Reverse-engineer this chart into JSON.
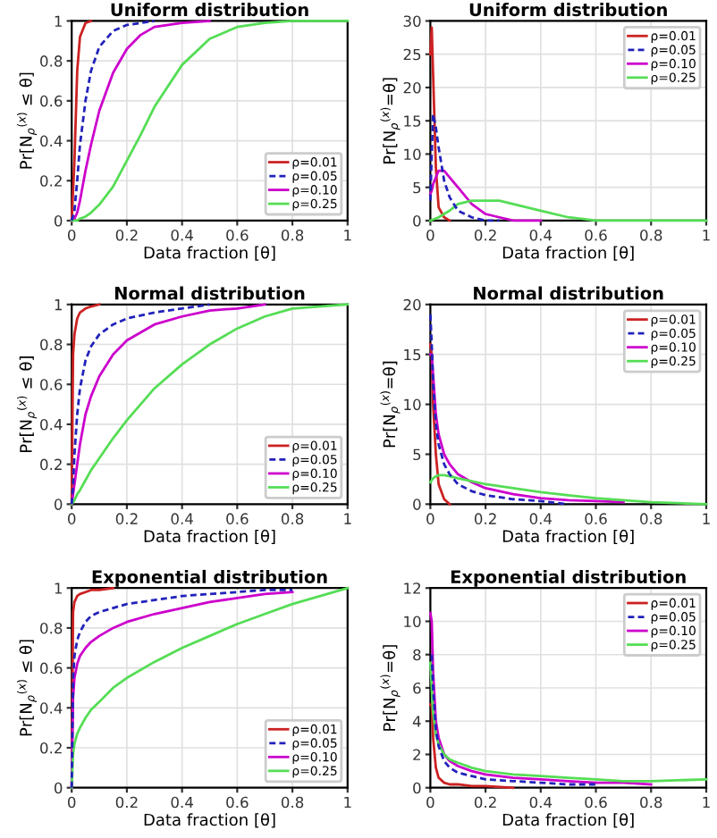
{
  "chart_data": [
    {
      "type": "line",
      "title": "Uniform distribution",
      "xlabel": "Data fraction [θ]",
      "ylabel": "Pr[N$_{ρ}$$^{(x)}$ ≤ θ]",
      "xlim": [
        0,
        1
      ],
      "ylim": [
        0,
        1
      ],
      "xticks": [
        0,
        0.2,
        0.4,
        0.6,
        0.8,
        1
      ],
      "yticks": [
        0,
        0.2,
        0.4,
        0.6,
        0.8,
        1
      ],
      "grid": true,
      "legend": "bottom right",
      "series": [
        {
          "name": "ρ=0.01",
          "color": "#cc2222",
          "line_style": "solid",
          "x": [
            0,
            0.01,
            0.02,
            0.03,
            0.05,
            0.07
          ],
          "values": [
            0,
            0.3,
            0.75,
            0.92,
            0.99,
            1
          ]
        },
        {
          "name": "ρ=0.05",
          "color": "#2222bb",
          "line_style": "dashed",
          "x": [
            0,
            0.01,
            0.02,
            0.03,
            0.05,
            0.07,
            0.1,
            0.15,
            0.2,
            0.25,
            0.3
          ],
          "values": [
            0,
            0.05,
            0.2,
            0.38,
            0.6,
            0.75,
            0.87,
            0.95,
            0.98,
            0.99,
            1
          ]
        },
        {
          "name": "ρ=0.10",
          "color": "#cc00cc",
          "line_style": "solid",
          "x": [
            0,
            0.01,
            0.02,
            0.03,
            0.05,
            0.07,
            0.1,
            0.15,
            0.2,
            0.25,
            0.3,
            0.4,
            0.5
          ],
          "values": [
            0,
            0.01,
            0.04,
            0.1,
            0.25,
            0.38,
            0.55,
            0.74,
            0.86,
            0.93,
            0.97,
            0.99,
            1
          ]
        },
        {
          "name": "ρ=0.25",
          "color": "#55dd55",
          "line_style": "solid",
          "x": [
            0,
            0.01,
            0.02,
            0.03,
            0.05,
            0.07,
            0.1,
            0.15,
            0.2,
            0.25,
            0.3,
            0.4,
            0.5,
            0.6,
            0.7,
            0.8,
            1
          ],
          "values": [
            0,
            0,
            0,
            0.01,
            0.02,
            0.04,
            0.08,
            0.17,
            0.3,
            0.43,
            0.57,
            0.78,
            0.91,
            0.97,
            0.99,
            1,
            1
          ]
        }
      ]
    },
    {
      "type": "line",
      "title": "Uniform distribution",
      "xlabel": "Data fraction [θ]",
      "ylabel": "Pr[N$_{ρ}$$^{(x)}$=θ]",
      "xlim": [
        0,
        1
      ],
      "ylim": [
        0,
        30
      ],
      "xticks": [
        0,
        0.2,
        0.4,
        0.6,
        0.8,
        1
      ],
      "yticks": [
        0,
        5,
        10,
        15,
        20,
        25,
        30
      ],
      "grid": true,
      "legend": "top right",
      "series": [
        {
          "name": "ρ=0.01",
          "color": "#cc2222",
          "line_style": "solid",
          "x": [
            0,
            0.005,
            0.01,
            0.02,
            0.03,
            0.05,
            0.07
          ],
          "values": [
            25,
            29,
            22,
            8,
            2,
            0.5,
            0
          ]
        },
        {
          "name": "ρ=0.05",
          "color": "#2222bb",
          "line_style": "dashed",
          "x": [
            0,
            0.005,
            0.01,
            0.02,
            0.03,
            0.05,
            0.07,
            0.1,
            0.15,
            0.2,
            0.25
          ],
          "values": [
            3,
            10,
            16,
            14,
            11,
            6,
            3.5,
            1.5,
            0.5,
            0,
            0
          ]
        },
        {
          "name": "ρ=0.10",
          "color": "#cc00cc",
          "line_style": "solid",
          "x": [
            0,
            0.005,
            0.01,
            0.02,
            0.03,
            0.05,
            0.07,
            0.1,
            0.15,
            0.2,
            0.25,
            0.3,
            0.4
          ],
          "values": [
            4,
            4.5,
            5.5,
            6.5,
            7.5,
            7.5,
            6.5,
            5,
            2.5,
            1,
            0.5,
            0,
            0
          ]
        },
        {
          "name": "ρ=0.25",
          "color": "#55dd55",
          "line_style": "solid",
          "x": [
            0,
            0.03,
            0.05,
            0.07,
            0.1,
            0.15,
            0.2,
            0.25,
            0.3,
            0.4,
            0.5,
            0.6,
            0.8,
            1
          ],
          "values": [
            0,
            0.5,
            1,
            1.5,
            2.5,
            3,
            3,
            3,
            2.5,
            1.5,
            0.5,
            0,
            0,
            0
          ]
        }
      ]
    },
    {
      "type": "line",
      "title": "Normal distribution",
      "xlabel": "Data fraction [θ]",
      "ylabel": "Pr[N$_{ρ}$$^{(x)}$ ≤ θ]",
      "xlim": [
        0,
        1
      ],
      "ylim": [
        0,
        1
      ],
      "xticks": [
        0,
        0.2,
        0.4,
        0.6,
        0.8,
        1
      ],
      "yticks": [
        0,
        0.2,
        0.4,
        0.6,
        0.8,
        1
      ],
      "grid": true,
      "legend": "bottom right",
      "series": [
        {
          "name": "ρ=0.01",
          "color": "#cc2222",
          "line_style": "solid",
          "x": [
            0,
            0.005,
            0.01,
            0.02,
            0.03,
            0.05,
            0.07,
            0.1
          ],
          "values": [
            0,
            0.75,
            0.85,
            0.93,
            0.96,
            0.98,
            0.99,
            1
          ]
        },
        {
          "name": "ρ=0.05",
          "color": "#2222bb",
          "line_style": "dashed",
          "x": [
            0,
            0.005,
            0.01,
            0.02,
            0.03,
            0.05,
            0.07,
            0.1,
            0.15,
            0.2,
            0.3,
            0.4,
            0.5
          ],
          "values": [
            0,
            0.1,
            0.25,
            0.45,
            0.58,
            0.72,
            0.79,
            0.85,
            0.9,
            0.93,
            0.96,
            0.98,
            1
          ]
        },
        {
          "name": "ρ=0.10",
          "color": "#cc00cc",
          "line_style": "solid",
          "x": [
            0,
            0.005,
            0.01,
            0.02,
            0.03,
            0.05,
            0.07,
            0.1,
            0.15,
            0.2,
            0.3,
            0.4,
            0.5,
            0.6,
            0.7
          ],
          "values": [
            0,
            0.05,
            0.1,
            0.2,
            0.3,
            0.45,
            0.54,
            0.64,
            0.75,
            0.82,
            0.9,
            0.94,
            0.97,
            0.98,
            1
          ]
        },
        {
          "name": "ρ=0.25",
          "color": "#55dd55",
          "line_style": "solid",
          "x": [
            0,
            0.005,
            0.01,
            0.02,
            0.03,
            0.05,
            0.07,
            0.1,
            0.15,
            0.2,
            0.3,
            0.4,
            0.5,
            0.6,
            0.7,
            0.8,
            1
          ],
          "values": [
            0,
            0.01,
            0.02,
            0.05,
            0.07,
            0.12,
            0.17,
            0.23,
            0.33,
            0.42,
            0.58,
            0.7,
            0.8,
            0.88,
            0.94,
            0.98,
            1
          ]
        }
      ]
    },
    {
      "type": "line",
      "title": "Normal distribution",
      "xlabel": "Data fraction [θ]",
      "ylabel": "Pr[N$_{ρ}$$^{(x)}$=θ]",
      "xlim": [
        0,
        1
      ],
      "ylim": [
        0,
        20
      ],
      "xticks": [
        0,
        0.2,
        0.4,
        0.6,
        0.8,
        1
      ],
      "yticks": [
        0,
        5,
        10,
        15,
        20
      ],
      "grid": true,
      "legend": "top right",
      "series": [
        {
          "name": "ρ=0.01",
          "color": "#cc2222",
          "line_style": "solid",
          "x": [
            0,
            0.005,
            0.01,
            0.02,
            0.03,
            0.05,
            0.07
          ],
          "values": [
            16,
            15,
            10,
            5,
            2,
            0.5,
            0
          ]
        },
        {
          "name": "ρ=0.05",
          "color": "#2222bb",
          "line_style": "dashed",
          "x": [
            0,
            0.005,
            0.01,
            0.02,
            0.03,
            0.05,
            0.07,
            0.1,
            0.15,
            0.2,
            0.3,
            0.4,
            0.5
          ],
          "values": [
            19,
            16,
            12,
            8,
            6,
            4,
            3,
            2,
            1.3,
            0.9,
            0.5,
            0.3,
            0
          ]
        },
        {
          "name": "ρ=0.10",
          "color": "#cc00cc",
          "line_style": "solid",
          "x": [
            0,
            0.005,
            0.01,
            0.02,
            0.03,
            0.05,
            0.07,
            0.1,
            0.15,
            0.2,
            0.3,
            0.4,
            0.5,
            0.6,
            0.7
          ],
          "values": [
            15,
            15,
            13,
            9,
            7,
            5,
            4,
            3,
            2.2,
            1.6,
            1,
            0.6,
            0.4,
            0.3,
            0.2
          ]
        },
        {
          "name": "ρ=0.25",
          "color": "#55dd55",
          "line_style": "solid",
          "x": [
            0,
            0.005,
            0.01,
            0.02,
            0.03,
            0.05,
            0.07,
            0.1,
            0.15,
            0.2,
            0.3,
            0.4,
            0.5,
            0.6,
            0.7,
            0.8,
            1
          ],
          "values": [
            2.2,
            2.4,
            2.6,
            2.8,
            2.9,
            2.9,
            2.8,
            2.6,
            2.3,
            2,
            1.6,
            1.2,
            0.9,
            0.6,
            0.4,
            0.2,
            0
          ]
        }
      ]
    },
    {
      "type": "line",
      "title": "Exponential distribution",
      "xlabel": "Data fraction [θ]",
      "ylabel": "Pr[N$_{ρ}$$^{(x)}$ ≤ θ]",
      "xlim": [
        0,
        1
      ],
      "ylim": [
        0,
        1
      ],
      "xticks": [
        0,
        0.2,
        0.4,
        0.6,
        0.8,
        1
      ],
      "yticks": [
        0,
        0.2,
        0.4,
        0.6,
        0.8,
        1
      ],
      "grid": true,
      "legend": "bottom right",
      "series": [
        {
          "name": "ρ=0.01",
          "color": "#cc2222",
          "line_style": "solid",
          "x": [
            0,
            0.005,
            0.01,
            0.02,
            0.03,
            0.05,
            0.07,
            0.1,
            0.15
          ],
          "values": [
            0,
            0.88,
            0.93,
            0.96,
            0.97,
            0.98,
            0.99,
            0.99,
            1
          ]
        },
        {
          "name": "ρ=0.05",
          "color": "#2222bb",
          "line_style": "dashed",
          "x": [
            0,
            0.005,
            0.01,
            0.02,
            0.03,
            0.05,
            0.07,
            0.1,
            0.15,
            0.2,
            0.3,
            0.4,
            0.5,
            0.6,
            0.7,
            0.8
          ],
          "values": [
            0,
            0.55,
            0.66,
            0.74,
            0.78,
            0.83,
            0.86,
            0.88,
            0.9,
            0.92,
            0.94,
            0.96,
            0.97,
            0.98,
            0.99,
            0.99
          ]
        },
        {
          "name": "ρ=0.10",
          "color": "#cc00cc",
          "line_style": "solid",
          "x": [
            0,
            0.005,
            0.01,
            0.02,
            0.03,
            0.05,
            0.07,
            0.1,
            0.15,
            0.2,
            0.3,
            0.4,
            0.5,
            0.6,
            0.7,
            0.8
          ],
          "values": [
            0,
            0.45,
            0.55,
            0.62,
            0.66,
            0.7,
            0.73,
            0.76,
            0.8,
            0.83,
            0.87,
            0.9,
            0.93,
            0.95,
            0.97,
            0.98
          ]
        },
        {
          "name": "ρ=0.25",
          "color": "#55dd55",
          "line_style": "solid",
          "x": [
            0,
            0.005,
            0.01,
            0.02,
            0.03,
            0.05,
            0.07,
            0.1,
            0.15,
            0.2,
            0.3,
            0.4,
            0.5,
            0.6,
            0.7,
            0.8,
            1
          ],
          "values": [
            0,
            0.17,
            0.22,
            0.27,
            0.3,
            0.35,
            0.39,
            0.43,
            0.5,
            0.55,
            0.63,
            0.7,
            0.76,
            0.82,
            0.87,
            0.92,
            1
          ]
        }
      ]
    },
    {
      "type": "line",
      "title": "Exponential distribution",
      "xlabel": "Data fraction [θ]",
      "ylabel": "Pr[N$_{ρ}$$^{(x)}$=θ]",
      "xlim": [
        0,
        1
      ],
      "ylim": [
        0,
        12
      ],
      "xticks": [
        0,
        0.2,
        0.4,
        0.6,
        0.8,
        1
      ],
      "yticks": [
        0,
        2,
        4,
        6,
        8,
        10,
        12
      ],
      "grid": true,
      "legend": "top right",
      "series": [
        {
          "name": "ρ=0.01",
          "color": "#cc2222",
          "line_style": "solid",
          "x": [
            0,
            0.005,
            0.01,
            0.02,
            0.03,
            0.05,
            0.07,
            0.1,
            0.15,
            0.2,
            0.3
          ],
          "values": [
            5,
            5,
            3,
            1.2,
            0.6,
            0.3,
            0.2,
            0.2,
            0.1,
            0.1,
            0
          ]
        },
        {
          "name": "ρ=0.05",
          "color": "#2222bb",
          "line_style": "dashed",
          "x": [
            0.005,
            0.01,
            0.02,
            0.03,
            0.05,
            0.07,
            0.1,
            0.15,
            0.2,
            0.3,
            0.4,
            0.5,
            0.6
          ],
          "values": [
            8,
            6,
            3.5,
            2.5,
            1.6,
            1.2,
            0.9,
            0.7,
            0.5,
            0.4,
            0.3,
            0.2,
            0.2
          ]
        },
        {
          "name": "ρ=0.10",
          "color": "#cc00cc",
          "line_style": "solid",
          "x": [
            0,
            0.005,
            0.01,
            0.02,
            0.03,
            0.05,
            0.07,
            0.1,
            0.15,
            0.2,
            0.3,
            0.4,
            0.5,
            0.6,
            0.7,
            0.8
          ],
          "values": [
            10.5,
            10,
            7,
            4,
            3,
            2,
            1.6,
            1.3,
            1,
            0.8,
            0.6,
            0.5,
            0.4,
            0.3,
            0.3,
            0.2
          ]
        },
        {
          "name": "ρ=0.25",
          "color": "#55dd55",
          "line_style": "solid",
          "x": [
            0,
            0.005,
            0.01,
            0.02,
            0.03,
            0.05,
            0.07,
            0.1,
            0.15,
            0.2,
            0.3,
            0.4,
            0.5,
            0.6,
            0.7,
            0.8,
            1
          ],
          "values": [
            7.5,
            6,
            4.5,
            3.2,
            2.6,
            2,
            1.7,
            1.5,
            1.2,
            1,
            0.8,
            0.7,
            0.6,
            0.5,
            0.4,
            0.4,
            0.5
          ]
        }
      ]
    }
  ]
}
